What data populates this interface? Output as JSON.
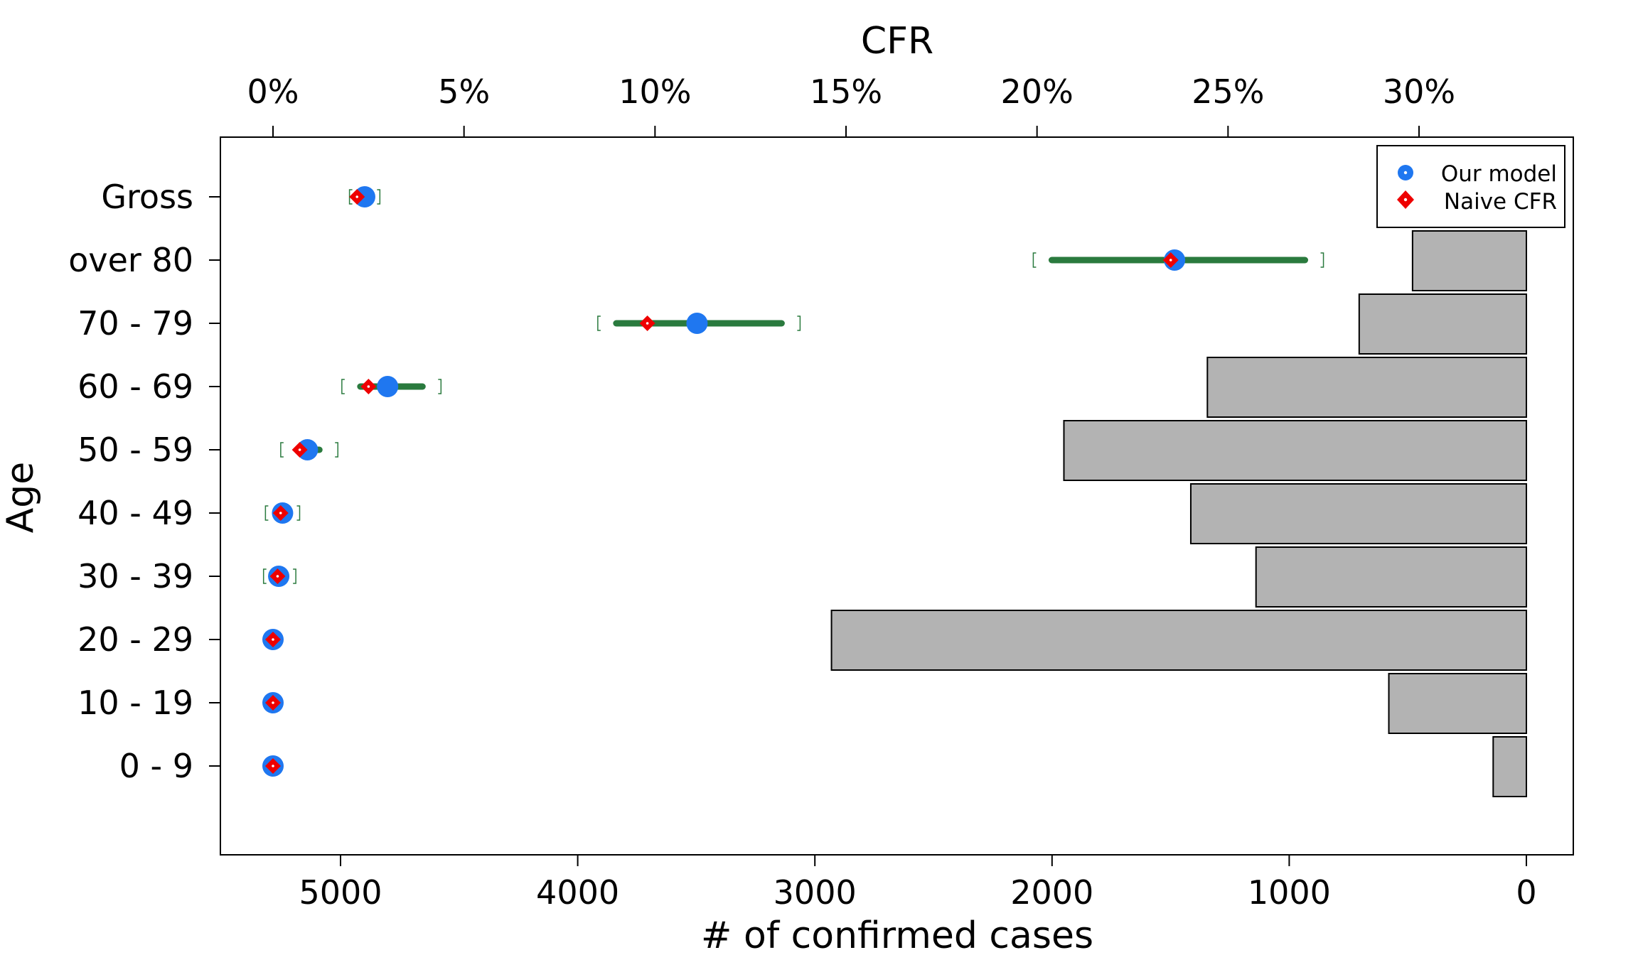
{
  "chart_data": {
    "type": "composite",
    "title": "",
    "top_axis": {
      "label": "CFR",
      "ticks": [
        0,
        5,
        10,
        15,
        20,
        25,
        30
      ],
      "tick_labels": [
        "0%",
        "5%",
        "10%",
        "15%",
        "20%",
        "25%",
        "30%"
      ],
      "range": [
        -1.35,
        34.2
      ]
    },
    "bottom_axis": {
      "label": "# of confirmed cases",
      "ticks": [
        5000,
        4000,
        3000,
        2000,
        1000,
        0
      ],
      "tick_labels": [
        "5000",
        "4000",
        "3000",
        "2000",
        "1000",
        "0"
      ],
      "range": [
        5500,
        -200
      ],
      "reversed": true
    },
    "y_axis": {
      "label": "Age",
      "categories": [
        "Gross",
        "over 80",
        "70 - 79",
        "60 - 69",
        "50 - 59",
        "40 - 49",
        "30 - 39",
        "20 - 29",
        "10 - 19",
        "0 - 9"
      ]
    },
    "legend": {
      "position": "top-right",
      "entries": [
        {
          "label": "Our model",
          "color": "#1f77f0",
          "marker": "circle"
        },
        {
          "label": "Naive CFR",
          "color": "#ee0000",
          "marker": "diamond"
        }
      ]
    },
    "cfr_points": [
      {
        "category": "Gross",
        "our_model": 2.4,
        "naive": 2.2,
        "ci": [
          2.3,
          2.5
        ]
      },
      {
        "category": "over 80",
        "our_model": 23.6,
        "naive": 23.5,
        "ci": [
          20.2,
          27.2
        ]
      },
      {
        "category": "70 - 79",
        "our_model": 11.1,
        "naive": 9.8,
        "ci": [
          8.8,
          13.5
        ]
      },
      {
        "category": "60 - 69",
        "our_model": 3.0,
        "naive": 2.5,
        "ci": [
          2.1,
          4.1
        ]
      },
      {
        "category": "50 - 59",
        "our_model": 0.9,
        "naive": 0.7,
        "ci": [
          0.5,
          1.4
        ]
      },
      {
        "category": "40 - 49",
        "our_model": 0.25,
        "naive": 0.2,
        "ci": [
          0.1,
          0.4
        ]
      },
      {
        "category": "30 - 39",
        "our_model": 0.15,
        "naive": 0.12,
        "ci": [
          0.05,
          0.3
        ]
      },
      {
        "category": "20 - 29",
        "our_model": 0.0,
        "naive": 0.0,
        "ci": [
          0.0,
          0.05
        ]
      },
      {
        "category": "10 - 19",
        "our_model": 0.0,
        "naive": 0.0,
        "ci": [
          0.0,
          0.05
        ]
      },
      {
        "category": "0 - 9",
        "our_model": 0.0,
        "naive": 0.0,
        "ci": [
          0.0,
          0.05
        ]
      }
    ],
    "confirmed_cases": [
      {
        "category": "over 80",
        "value": 480
      },
      {
        "category": "70 - 79",
        "value": 705
      },
      {
        "category": "60 - 69",
        "value": 1345
      },
      {
        "category": "50 - 59",
        "value": 1950
      },
      {
        "category": "40 - 49",
        "value": 1415
      },
      {
        "category": "30 - 39",
        "value": 1140
      },
      {
        "category": "20 - 29",
        "value": 2930
      },
      {
        "category": "10 - 19",
        "value": 580
      },
      {
        "category": "0 - 9",
        "value": 140
      }
    ],
    "colors": {
      "our_model": "#1f77f0",
      "naive": "#ee0000",
      "ci_line": "#2a7a3e",
      "bars": "#b3b3b3",
      "bar_stroke": "#000000"
    },
    "grid": false
  }
}
